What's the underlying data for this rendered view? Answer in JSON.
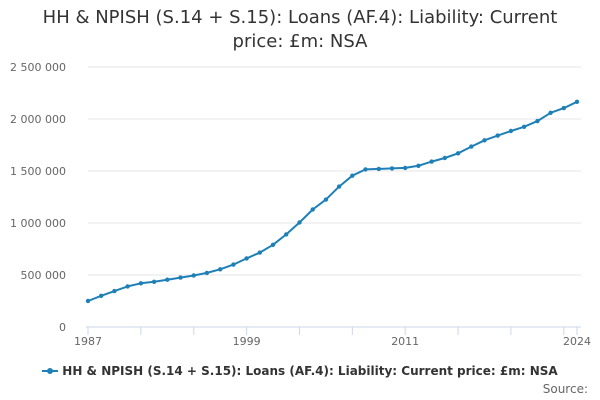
{
  "chart_data": {
    "type": "line",
    "title": "HH & NPISH (S.14 + S.15): Loans (AF.4): Liability: Current price: £m: NSA",
    "xlabel": "",
    "ylabel": "",
    "xlim": [
      1987,
      2024
    ],
    "ylim": [
      0,
      2500000
    ],
    "y_ticks": [
      0,
      500000,
      1000000,
      1500000,
      2000000,
      2500000
    ],
    "y_tick_labels": [
      "0",
      "500 000",
      "1 000 000",
      "1 500 000",
      "2 000 000",
      "2 500 000"
    ],
    "x_tick_labels": [
      "1987",
      "1999",
      "2011",
      "2024"
    ],
    "x_tick_values": [
      1987,
      1999,
      2011,
      2024
    ],
    "grid": "horizontal",
    "legend_position": "bottom",
    "x": [
      1987,
      1988,
      1989,
      1990,
      1991,
      1992,
      1993,
      1994,
      1995,
      1996,
      1997,
      1998,
      1999,
      2000,
      2001,
      2002,
      2003,
      2004,
      2005,
      2006,
      2007,
      2008,
      2009,
      2010,
      2011,
      2012,
      2013,
      2014,
      2015,
      2016,
      2017,
      2018,
      2019,
      2020,
      2021,
      2022,
      2023,
      2024
    ],
    "series": [
      {
        "name": "HH & NPISH (S.14 + S.15): Loans (AF.4): Liability: Current price: £m: NSA",
        "color": "#1f80b8",
        "values": [
          250000,
          300000,
          345000,
          390000,
          420000,
          435000,
          455000,
          475000,
          495000,
          520000,
          555000,
          600000,
          660000,
          715000,
          790000,
          890000,
          1005000,
          1130000,
          1225000,
          1350000,
          1455000,
          1515000,
          1520000,
          1525000,
          1530000,
          1550000,
          1590000,
          1625000,
          1670000,
          1735000,
          1795000,
          1840000,
          1885000,
          1925000,
          1980000,
          2060000,
          2105000,
          2165000
        ]
      }
    ]
  },
  "footer": {
    "source_label": "Source:"
  }
}
